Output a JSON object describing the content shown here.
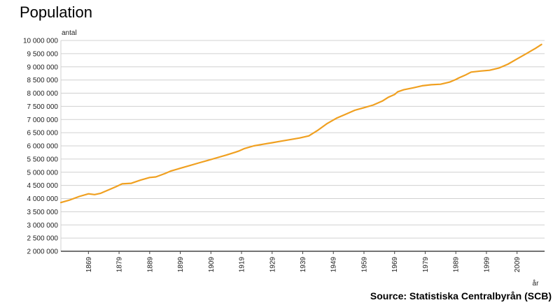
{
  "chart_data": {
    "type": "line",
    "title": "Population",
    "ylabel": "antal",
    "xlabel": "år",
    "source": "Source: Statistiska Centralbyrån (SCB)",
    "ylim": [
      2000000,
      10000000
    ],
    "xlim": [
      1860,
      2018
    ],
    "grid": true,
    "line_color": "#f0a020",
    "y_ticks": [
      2000000,
      2500000,
      3000000,
      3500000,
      4000000,
      4500000,
      5000000,
      5500000,
      6000000,
      6500000,
      7000000,
      7500000,
      8000000,
      8500000,
      9000000,
      9500000,
      10000000
    ],
    "y_tick_labels": [
      "2 000 000",
      "2 500 000",
      "3 000 000",
      "3 500 000",
      "4 000 000",
      "4 500 000",
      "5 000 000",
      "5 500 000",
      "6 000 000",
      "6 500 000",
      "7 000 000",
      "7 500 000",
      "8 000 000",
      "8 500 000",
      "9 000 000",
      "9 500 000",
      "10 000 000"
    ],
    "x_ticks": [
      1869,
      1879,
      1889,
      1899,
      1909,
      1919,
      1929,
      1939,
      1949,
      1959,
      1969,
      1979,
      1989,
      1999,
      2009
    ],
    "x_tick_labels": [
      "1869",
      "1879",
      "1889",
      "1899",
      "1909",
      "1919",
      "1929",
      "1939",
      "1949",
      "1959",
      "1969",
      "1979",
      "1989",
      "1999",
      "2009"
    ],
    "x": [
      1860,
      1863,
      1866,
      1869,
      1871,
      1873,
      1876,
      1878,
      1880,
      1883,
      1886,
      1889,
      1891,
      1894,
      1896,
      1899,
      1902,
      1905,
      1908,
      1911,
      1914,
      1917,
      1918,
      1920,
      1923,
      1926,
      1929,
      1932,
      1935,
      1938,
      1941,
      1944,
      1947,
      1950,
      1953,
      1956,
      1959,
      1962,
      1965,
      1967,
      1969,
      1970,
      1972,
      1975,
      1978,
      1981,
      1984,
      1987,
      1989,
      1990,
      1992,
      1994,
      1997,
      2000,
      2003,
      2006,
      2009,
      2012,
      2015,
      2017
    ],
    "values": [
      3850000,
      3950000,
      4080000,
      4180000,
      4150000,
      4200000,
      4350000,
      4450000,
      4560000,
      4580000,
      4700000,
      4800000,
      4820000,
      4950000,
      5050000,
      5150000,
      5250000,
      5350000,
      5450000,
      5550000,
      5650000,
      5760000,
      5800000,
      5900000,
      6000000,
      6060000,
      6120000,
      6180000,
      6240000,
      6300000,
      6380000,
      6600000,
      6850000,
      7050000,
      7200000,
      7350000,
      7450000,
      7550000,
      7700000,
      7850000,
      7950000,
      8050000,
      8130000,
      8200000,
      8280000,
      8320000,
      8340000,
      8420000,
      8520000,
      8580000,
      8680000,
      8800000,
      8840000,
      8870000,
      8950000,
      9100000,
      9300000,
      9500000,
      9700000,
      9850000
    ]
  }
}
